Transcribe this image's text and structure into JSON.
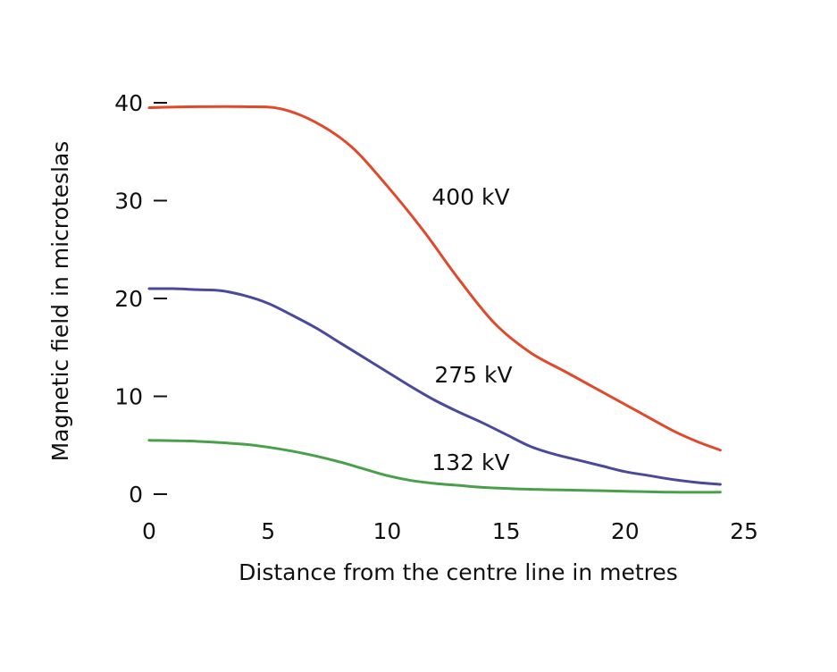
{
  "chart_data": {
    "type": "line",
    "title": "",
    "xlabel": "Distance from the centre line in metres",
    "ylabel": "Magnetic field in microteslas",
    "xlim": [
      0,
      25
    ],
    "ylim": [
      0,
      40
    ],
    "x_ticks": [
      "0",
      "5",
      "10",
      "15",
      "20",
      "25"
    ],
    "y_ticks": [
      "0",
      "10",
      "20",
      "30",
      "40"
    ],
    "grid": false,
    "legend": "none (series labelled directly on lines)",
    "series": [
      {
        "name": "400 kV",
        "color": "#e04a2a",
        "x": [
          0,
          2,
          4,
          5.5,
          7,
          8.5,
          10,
          11.5,
          13,
          14.5,
          16,
          17.5,
          19,
          20.5,
          22,
          23,
          24
        ],
        "y": [
          39.5,
          39.6,
          39.6,
          39.4,
          38,
          35.5,
          31.5,
          27,
          22,
          17.5,
          14.5,
          12.5,
          10.5,
          8.5,
          6.5,
          5.4,
          4.5
        ]
      },
      {
        "name": "275 kV",
        "color": "#4a4a9c",
        "x": [
          0,
          1,
          2,
          3,
          4,
          5,
          6,
          7,
          8,
          9,
          10,
          11,
          12,
          13,
          14,
          15,
          16,
          17,
          18,
          19,
          20,
          21,
          22,
          23,
          24
        ],
        "y": [
          21,
          21,
          20.9,
          20.8,
          20.3,
          19.5,
          18.3,
          17,
          15.5,
          14,
          12.5,
          11,
          9.6,
          8.4,
          7.3,
          6.1,
          4.9,
          4.1,
          3.5,
          2.9,
          2.3,
          1.9,
          1.5,
          1.2,
          1
        ]
      },
      {
        "name": "132 kV",
        "color": "#4aa04a",
        "x": [
          0,
          2,
          4,
          5,
          6,
          7,
          8,
          9,
          10,
          11,
          12,
          13,
          14,
          16,
          18,
          20,
          22,
          24
        ],
        "y": [
          5.5,
          5.4,
          5.1,
          4.8,
          4.4,
          3.9,
          3.3,
          2.6,
          1.9,
          1.4,
          1.1,
          0.9,
          0.7,
          0.5,
          0.4,
          0.3,
          0.2,
          0.2
        ]
      }
    ]
  }
}
